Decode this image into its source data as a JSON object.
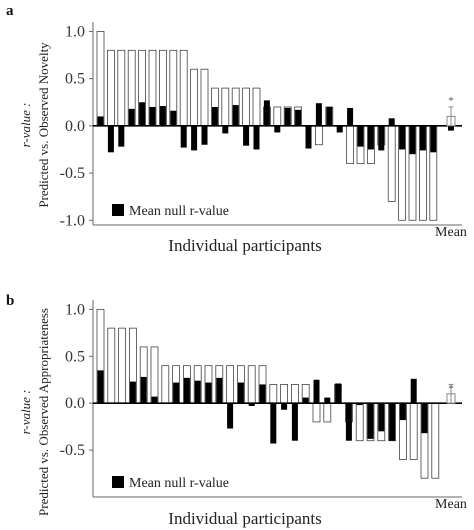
{
  "chart_data": [
    {
      "type": "bar",
      "panel_label": "a",
      "ylabel_line1": "r-value :",
      "ylabel_line2": "Predicted vs. Observed Novelty",
      "xlabel": "Individual participants",
      "mean_label": "Mean",
      "legend_label": "Mean null r-value",
      "significance_marker": "*",
      "ylim": [
        -1.05,
        1.1
      ],
      "yticks": [
        "1.0",
        "0.5",
        "0.0",
        "-0.5",
        "-1.0"
      ],
      "ytick_values": [
        1.0,
        0.5,
        0.0,
        -0.5,
        -1.0
      ],
      "series": [
        {
          "name": "Predicted vs. observed r-value",
          "values": [
            1.0,
            0.8,
            0.8,
            0.8,
            0.8,
            0.8,
            0.8,
            0.8,
            0.8,
            0.6,
            0.6,
            0.4,
            0.4,
            0.4,
            0.4,
            0.4,
            0.2,
            0.2,
            0.2,
            0.2,
            0.0,
            -0.2,
            0.2,
            0.0,
            -0.4,
            -0.4,
            -0.4,
            -0.2,
            -0.8,
            -1.0,
            -1.0,
            -1.0,
            -1.0
          ]
        },
        {
          "name": "Mean null r-value",
          "values": [
            0.1,
            -0.28,
            -0.22,
            0.18,
            0.25,
            0.2,
            0.21,
            0.16,
            -0.23,
            -0.26,
            -0.2,
            0.2,
            -0.08,
            0.22,
            -0.21,
            -0.25,
            0.27,
            -0.07,
            0.19,
            0.17,
            -0.24,
            0.24,
            0.2,
            -0.07,
            0.19,
            -0.22,
            -0.25,
            -0.26,
            0.08,
            -0.25,
            -0.3,
            -0.26,
            -0.28
          ]
        }
      ],
      "mean": {
        "value": 0.1,
        "error": 0.1,
        "null_value": -0.05
      }
    },
    {
      "type": "bar",
      "panel_label": "b",
      "ylabel_line1": "r-value :",
      "ylabel_line2": "Predicted vs. Observed Appropriateness",
      "xlabel": "Individual participants",
      "mean_label": "Mean",
      "legend_label": "Mean null r-value",
      "significance_marker": "*",
      "ylim": [
        -1.0,
        1.1
      ],
      "yticks": [
        "1.0",
        "0.5",
        "0.0",
        "-0.5"
      ],
      "ytick_values": [
        1.0,
        0.5,
        0.0,
        -0.5
      ],
      "series": [
        {
          "name": "Predicted vs. observed r-value",
          "values": [
            1.0,
            0.8,
            0.8,
            0.8,
            0.6,
            0.6,
            0.4,
            0.4,
            0.4,
            0.4,
            0.4,
            0.4,
            0.4,
            0.4,
            0.4,
            0.4,
            0.2,
            0.2,
            0.2,
            0.2,
            -0.2,
            -0.2,
            0.2,
            -0.2,
            -0.4,
            -0.4,
            -0.4,
            -0.4,
            -0.6,
            -0.6,
            -0.8,
            -0.8
          ]
        },
        {
          "name": "Mean null r-value",
          "values": [
            0.35,
            0.0,
            0.0,
            0.23,
            0.28,
            0.07,
            0.0,
            0.22,
            0.27,
            0.24,
            0.22,
            0.27,
            -0.27,
            0.22,
            -0.03,
            0.2,
            -0.43,
            -0.07,
            -0.4,
            0.06,
            0.25,
            0.06,
            0.21,
            -0.4,
            -0.02,
            -0.38,
            -0.3,
            -0.4,
            -0.18,
            0.26,
            -0.32,
            0.0
          ]
        }
      ],
      "mean": {
        "value": 0.1,
        "error": 0.1,
        "null_value": 0.0
      }
    }
  ]
}
